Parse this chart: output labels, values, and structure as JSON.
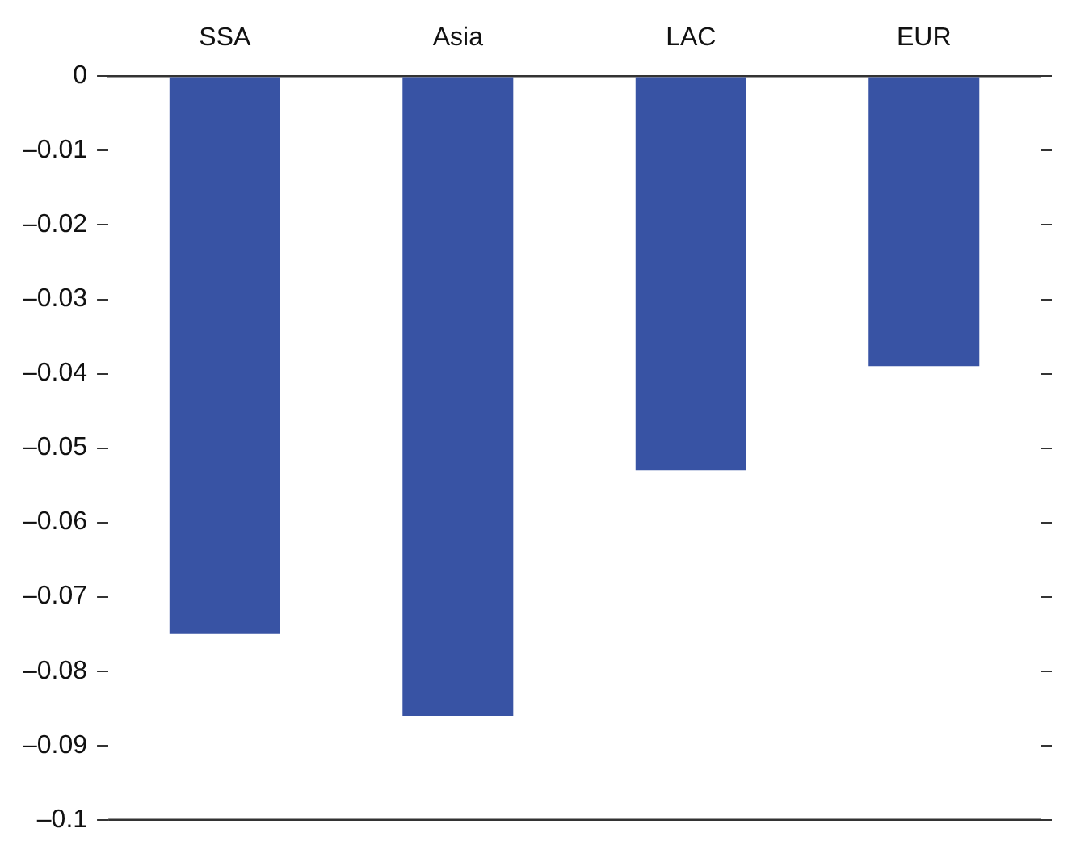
{
  "chart_data": {
    "type": "bar",
    "categories": [
      "SSA",
      "Asia",
      "LAC",
      "EUR"
    ],
    "values": [
      -0.075,
      -0.086,
      -0.053,
      -0.039
    ],
    "color": "#3853a4",
    "ylim": [
      -0.1,
      0
    ],
    "yticks": [
      {
        "value": 0,
        "label": "0"
      },
      {
        "value": -0.01,
        "label": "–0.01"
      },
      {
        "value": -0.02,
        "label": "–0.02"
      },
      {
        "value": -0.03,
        "label": "–0.03"
      },
      {
        "value": -0.04,
        "label": "–0.04"
      },
      {
        "value": -0.05,
        "label": "–0.05"
      },
      {
        "value": -0.06,
        "label": "–0.06"
      },
      {
        "value": -0.07,
        "label": "–0.07"
      },
      {
        "value": -0.08,
        "label": "–0.08"
      },
      {
        "value": -0.09,
        "label": "–0.09"
      },
      {
        "value": -0.1,
        "label": "–0.1"
      }
    ],
    "grid": false,
    "legend": false
  }
}
